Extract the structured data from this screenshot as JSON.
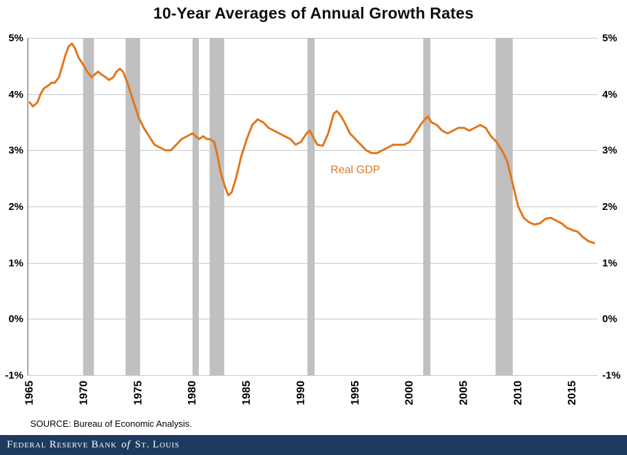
{
  "title": "10-Year Averages of Annual Growth Rates",
  "source": "SOURCE: Bureau of Economic Analysis.",
  "footer": {
    "part1": "Federal Reserve Bank",
    "part2": "of",
    "part3": "St. Louis"
  },
  "colors": {
    "line": "#E0761D",
    "recession_band": "#C0C0C0",
    "grid": "#C8C8C8",
    "axis": "#595959",
    "footer_bg": "#1D3A5F",
    "footer_text": "#FFFFFF",
    "text": "#000000"
  },
  "chart_data": {
    "type": "line",
    "title": "10-Year Averages of Annual Growth Rates",
    "xlabel": "",
    "ylabel": "",
    "xlim": [
      1964.8,
      2017.3
    ],
    "ylim": [
      -1,
      5
    ],
    "x_ticks": [
      1965,
      1970,
      1975,
      1980,
      1985,
      1990,
      1995,
      2000,
      2005,
      2010,
      2015
    ],
    "y_ticks": [
      5,
      4,
      3,
      2,
      1,
      0,
      -1
    ],
    "y_tick_labels": [
      "5%",
      "4%",
      "3%",
      "2%",
      "1%",
      "0%",
      "-1%"
    ],
    "grid": true,
    "legend_position": "none",
    "annotation": {
      "text": "Real GDP",
      "x": 1995.0,
      "y": 2.65
    },
    "recession_bands": [
      [
        1969.92,
        1970.92
      ],
      [
        1973.83,
        1975.17
      ],
      [
        1980.0,
        1980.58
      ],
      [
        1981.58,
        1982.92
      ],
      [
        1990.58,
        1991.25
      ],
      [
        2001.25,
        2001.92
      ],
      [
        2007.92,
        2009.5
      ]
    ],
    "series": [
      {
        "name": "Real GDP",
        "x": [
          1965.0,
          1965.3,
          1965.7,
          1966.0,
          1966.3,
          1966.7,
          1967.0,
          1967.3,
          1967.7,
          1968.0,
          1968.3,
          1968.6,
          1968.9,
          1969.2,
          1969.5,
          1970.0,
          1970.3,
          1970.7,
          1971.0,
          1971.3,
          1971.6,
          1972.0,
          1972.3,
          1972.7,
          1973.0,
          1973.3,
          1973.6,
          1974.0,
          1974.5,
          1975.0,
          1975.5,
          1976.0,
          1976.5,
          1977.0,
          1977.5,
          1978.0,
          1978.5,
          1979.0,
          1979.5,
          1980.0,
          1980.3,
          1980.6,
          1981.0,
          1981.3,
          1981.6,
          1982.0,
          1982.3,
          1982.6,
          1983.0,
          1983.3,
          1983.6,
          1984.0,
          1984.5,
          1985.0,
          1985.5,
          1986.0,
          1986.5,
          1987.0,
          1987.5,
          1988.0,
          1988.5,
          1989.0,
          1989.5,
          1990.0,
          1990.5,
          1990.8,
          1991.2,
          1991.5,
          1992.0,
          1992.5,
          1993.0,
          1993.3,
          1993.7,
          1994.0,
          1994.5,
          1995.0,
          1995.5,
          1996.0,
          1996.5,
          1997.0,
          1997.5,
          1998.0,
          1998.5,
          1999.0,
          1999.5,
          2000.0,
          2000.5,
          2001.0,
          2001.4,
          2001.7,
          2002.0,
          2002.5,
          2003.0,
          2003.5,
          2004.0,
          2004.5,
          2005.0,
          2005.5,
          2006.0,
          2006.5,
          2007.0,
          2007.5,
          2008.0,
          2008.5,
          2009.0,
          2009.5,
          2010.0,
          2010.5,
          2011.0,
          2011.5,
          2012.0,
          2012.5,
          2013.0,
          2013.5,
          2014.0,
          2014.5,
          2015.0,
          2015.5,
          2016.0,
          2016.5,
          2017.0
        ],
        "y": [
          3.85,
          3.78,
          3.85,
          4.0,
          4.1,
          4.15,
          4.2,
          4.2,
          4.3,
          4.5,
          4.7,
          4.85,
          4.9,
          4.8,
          4.65,
          4.5,
          4.4,
          4.3,
          4.35,
          4.4,
          4.35,
          4.3,
          4.25,
          4.3,
          4.4,
          4.45,
          4.4,
          4.2,
          3.9,
          3.6,
          3.4,
          3.25,
          3.1,
          3.05,
          3.0,
          3.0,
          3.1,
          3.2,
          3.25,
          3.3,
          3.25,
          3.2,
          3.25,
          3.2,
          3.2,
          3.15,
          2.9,
          2.6,
          2.35,
          2.2,
          2.25,
          2.5,
          2.9,
          3.2,
          3.45,
          3.55,
          3.5,
          3.4,
          3.35,
          3.3,
          3.25,
          3.2,
          3.1,
          3.15,
          3.3,
          3.35,
          3.2,
          3.1,
          3.08,
          3.3,
          3.65,
          3.7,
          3.6,
          3.5,
          3.3,
          3.2,
          3.1,
          3.0,
          2.95,
          2.95,
          3.0,
          3.05,
          3.1,
          3.1,
          3.1,
          3.15,
          3.3,
          3.45,
          3.55,
          3.6,
          3.5,
          3.45,
          3.35,
          3.3,
          3.35,
          3.4,
          3.4,
          3.35,
          3.4,
          3.45,
          3.4,
          3.25,
          3.15,
          3.0,
          2.8,
          2.4,
          2.0,
          1.8,
          1.72,
          1.68,
          1.7,
          1.78,
          1.8,
          1.75,
          1.7,
          1.62,
          1.58,
          1.55,
          1.45,
          1.38,
          1.35
        ]
      }
    ]
  }
}
